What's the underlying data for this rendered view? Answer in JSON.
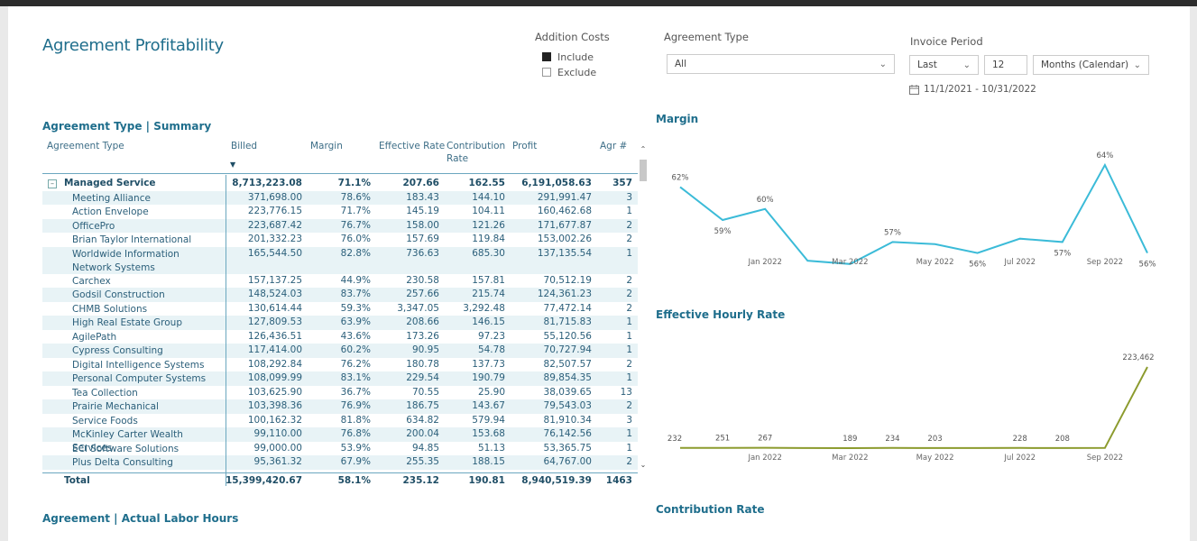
{
  "report": {
    "title": "Agreement Profitability"
  },
  "filters": {
    "addition_costs": {
      "label": "Addition Costs",
      "options": [
        {
          "label": "Include",
          "checked": true
        },
        {
          "label": "Exclude",
          "checked": false
        }
      ]
    },
    "agreement_type": {
      "label": "Agreement Type",
      "value": "All"
    },
    "invoice_period": {
      "label": "Invoice Period",
      "mode": "Last",
      "count": "12",
      "unit": "Months (Calendar)",
      "range": "11/1/2021 - 10/31/2022"
    }
  },
  "summary": {
    "title": "Agreement Type | Summary",
    "columns": [
      "Agreement Type",
      "Billed",
      "Margin",
      "Effective Rate",
      "Contribution Rate",
      "Profit",
      "Agr #"
    ],
    "group": {
      "name": "Managed Service",
      "billed": "8,713,223.08",
      "margin": "71.1%",
      "eff": "207.66",
      "cr": "162.55",
      "profit": "6,191,058.63",
      "agr": "357"
    },
    "rows": [
      {
        "name": "Meeting Alliance",
        "billed": "371,698.00",
        "margin": "78.6%",
        "eff": "183.43",
        "cr": "144.10",
        "profit": "291,991.47",
        "agr": "3"
      },
      {
        "name": "Action Envelope",
        "billed": "223,776.15",
        "margin": "71.7%",
        "eff": "145.19",
        "cr": "104.11",
        "profit": "160,462.68",
        "agr": "1"
      },
      {
        "name": "OfficePro",
        "billed": "223,687.42",
        "margin": "76.7%",
        "eff": "158.00",
        "cr": "121.26",
        "profit": "171,677.87",
        "agr": "2"
      },
      {
        "name": "Brian Taylor International",
        "billed": "201,332.23",
        "margin": "76.0%",
        "eff": "157.69",
        "cr": "119.84",
        "profit": "153,002.26",
        "agr": "2"
      },
      {
        "name": "Worldwide Information Network Systems",
        "billed": "165,544.50",
        "margin": "82.8%",
        "eff": "736.63",
        "cr": "685.30",
        "profit": "137,135.54",
        "agr": "1"
      },
      {
        "name": "Carchex",
        "billed": "157,137.25",
        "margin": "44.9%",
        "eff": "230.58",
        "cr": "157.81",
        "profit": "70,512.19",
        "agr": "2"
      },
      {
        "name": "Godsil Construction",
        "billed": "148,524.03",
        "margin": "83.7%",
        "eff": "257.66",
        "cr": "215.74",
        "profit": "124,361.23",
        "agr": "2"
      },
      {
        "name": "CHMB Solutions",
        "billed": "130,614.44",
        "margin": "59.3%",
        "eff": "3,347.05",
        "cr": "3,292.48",
        "profit": "77,472.14",
        "agr": "2"
      },
      {
        "name": "High Real Estate Group",
        "billed": "127,809.53",
        "margin": "63.9%",
        "eff": "208.66",
        "cr": "146.15",
        "profit": "81,715.83",
        "agr": "1"
      },
      {
        "name": "AgilePath",
        "billed": "126,436.51",
        "margin": "43.6%",
        "eff": "173.26",
        "cr": "97.23",
        "profit": "55,120.56",
        "agr": "1"
      },
      {
        "name": "Cypress Consulting",
        "billed": "117,414.00",
        "margin": "60.2%",
        "eff": "90.95",
        "cr": "54.78",
        "profit": "70,727.94",
        "agr": "1"
      },
      {
        "name": "Digital Intelligence Systems",
        "billed": "108,292.84",
        "margin": "76.2%",
        "eff": "180.78",
        "cr": "137.73",
        "profit": "82,507.57",
        "agr": "2"
      },
      {
        "name": "Personal Computer Systems",
        "billed": "108,099.99",
        "margin": "83.1%",
        "eff": "229.54",
        "cr": "190.79",
        "profit": "89,854.35",
        "agr": "1"
      },
      {
        "name": "Tea Collection",
        "billed": "103,625.90",
        "margin": "36.7%",
        "eff": "70.55",
        "cr": "25.90",
        "profit": "38,039.65",
        "agr": "13"
      },
      {
        "name": "Prairie Mechanical",
        "billed": "103,398.36",
        "margin": "76.9%",
        "eff": "186.75",
        "cr": "143.67",
        "profit": "79,543.03",
        "agr": "2"
      },
      {
        "name": "Service Foods",
        "billed": "100,162.32",
        "margin": "81.8%",
        "eff": "634.82",
        "cr": "579.94",
        "profit": "81,910.34",
        "agr": "3"
      },
      {
        "name": "McKinley Carter Wealth Services",
        "billed": "99,110.00",
        "margin": "76.8%",
        "eff": "200.04",
        "cr": "153.68",
        "profit": "76,142.56",
        "agr": "1"
      },
      {
        "name": "ECi Software Solutions",
        "billed": "99,000.00",
        "margin": "53.9%",
        "eff": "94.85",
        "cr": "51.13",
        "profit": "53,365.75",
        "agr": "1"
      },
      {
        "name": "Plus Delta Consulting",
        "billed": "95,361.32",
        "margin": "67.9%",
        "eff": "255.35",
        "cr": "188.15",
        "profit": "64,767.00",
        "agr": "2"
      }
    ],
    "total": {
      "label": "Total",
      "billed": "15,399,420.67",
      "margin": "58.1%",
      "eff": "235.12",
      "cr": "190.81",
      "profit": "8,940,519.39",
      "agr": "1463"
    }
  },
  "labor": {
    "title": "Agreement | Actual Labor Hours"
  },
  "charts": {
    "margin_title": "Margin",
    "ehr_title": "Effective Hourly Rate",
    "cr_title": "Contribution Rate"
  },
  "chart_data": [
    {
      "type": "line",
      "title": "Margin",
      "x": [
        "Nov 2021",
        "Dec 2021",
        "Jan 2022",
        "Feb 2022",
        "Mar 2022",
        "Apr 2022",
        "May 2022",
        "Jun 2022",
        "Jul 2022",
        "Aug 2022",
        "Sep 2022",
        "Oct 2022"
      ],
      "tick_labels": [
        "Jan 2022",
        "Mar 2022",
        "May 2022",
        "Jul 2022",
        "Sep 2022"
      ],
      "series": [
        {
          "values": [
            62,
            59,
            60,
            55.3,
            55,
            57,
            56.8,
            56,
            57.3,
            57,
            64,
            56
          ]
        }
      ],
      "data_labels": [
        {
          "i": 0,
          "text": "62%"
        },
        {
          "i": 1,
          "text": "59%"
        },
        {
          "i": 2,
          "text": "60%"
        },
        {
          "i": 4,
          "text": "55%"
        },
        {
          "i": 5,
          "text": "57%"
        },
        {
          "i": 7,
          "text": "56%"
        },
        {
          "i": 9,
          "text": "57%"
        },
        {
          "i": 10,
          "text": "64%"
        },
        {
          "i": 11,
          "text": "56%"
        }
      ],
      "color": "#3bbbd8"
    },
    {
      "type": "line",
      "title": "Effective Hourly Rate",
      "x": [
        "Nov 2021",
        "Dec 2021",
        "Jan 2022",
        "Feb 2022",
        "Mar 2022",
        "Apr 2022",
        "May 2022",
        "Jun 2022",
        "Jul 2022",
        "Aug 2022",
        "Sep 2022",
        "Oct 2022"
      ],
      "tick_labels": [
        "Jan 2022",
        "Mar 2022",
        "May 2022",
        "Jul 2022",
        "Sep 2022"
      ],
      "series": [
        {
          "values": [
            232,
            251,
            267,
            200,
            189,
            234,
            203,
            210,
            228,
            208,
            220,
            223462
          ]
        }
      ],
      "data_labels": [
        {
          "i": 0,
          "text": "232"
        },
        {
          "i": 1,
          "text": "251"
        },
        {
          "i": 2,
          "text": "267"
        },
        {
          "i": 4,
          "text": "189"
        },
        {
          "i": 5,
          "text": "234"
        },
        {
          "i": 6,
          "text": "203"
        },
        {
          "i": 8,
          "text": "228"
        },
        {
          "i": 9,
          "text": "208"
        },
        {
          "i": 11,
          "text": "223,462"
        }
      ],
      "color": "#8c9b2e"
    }
  ]
}
